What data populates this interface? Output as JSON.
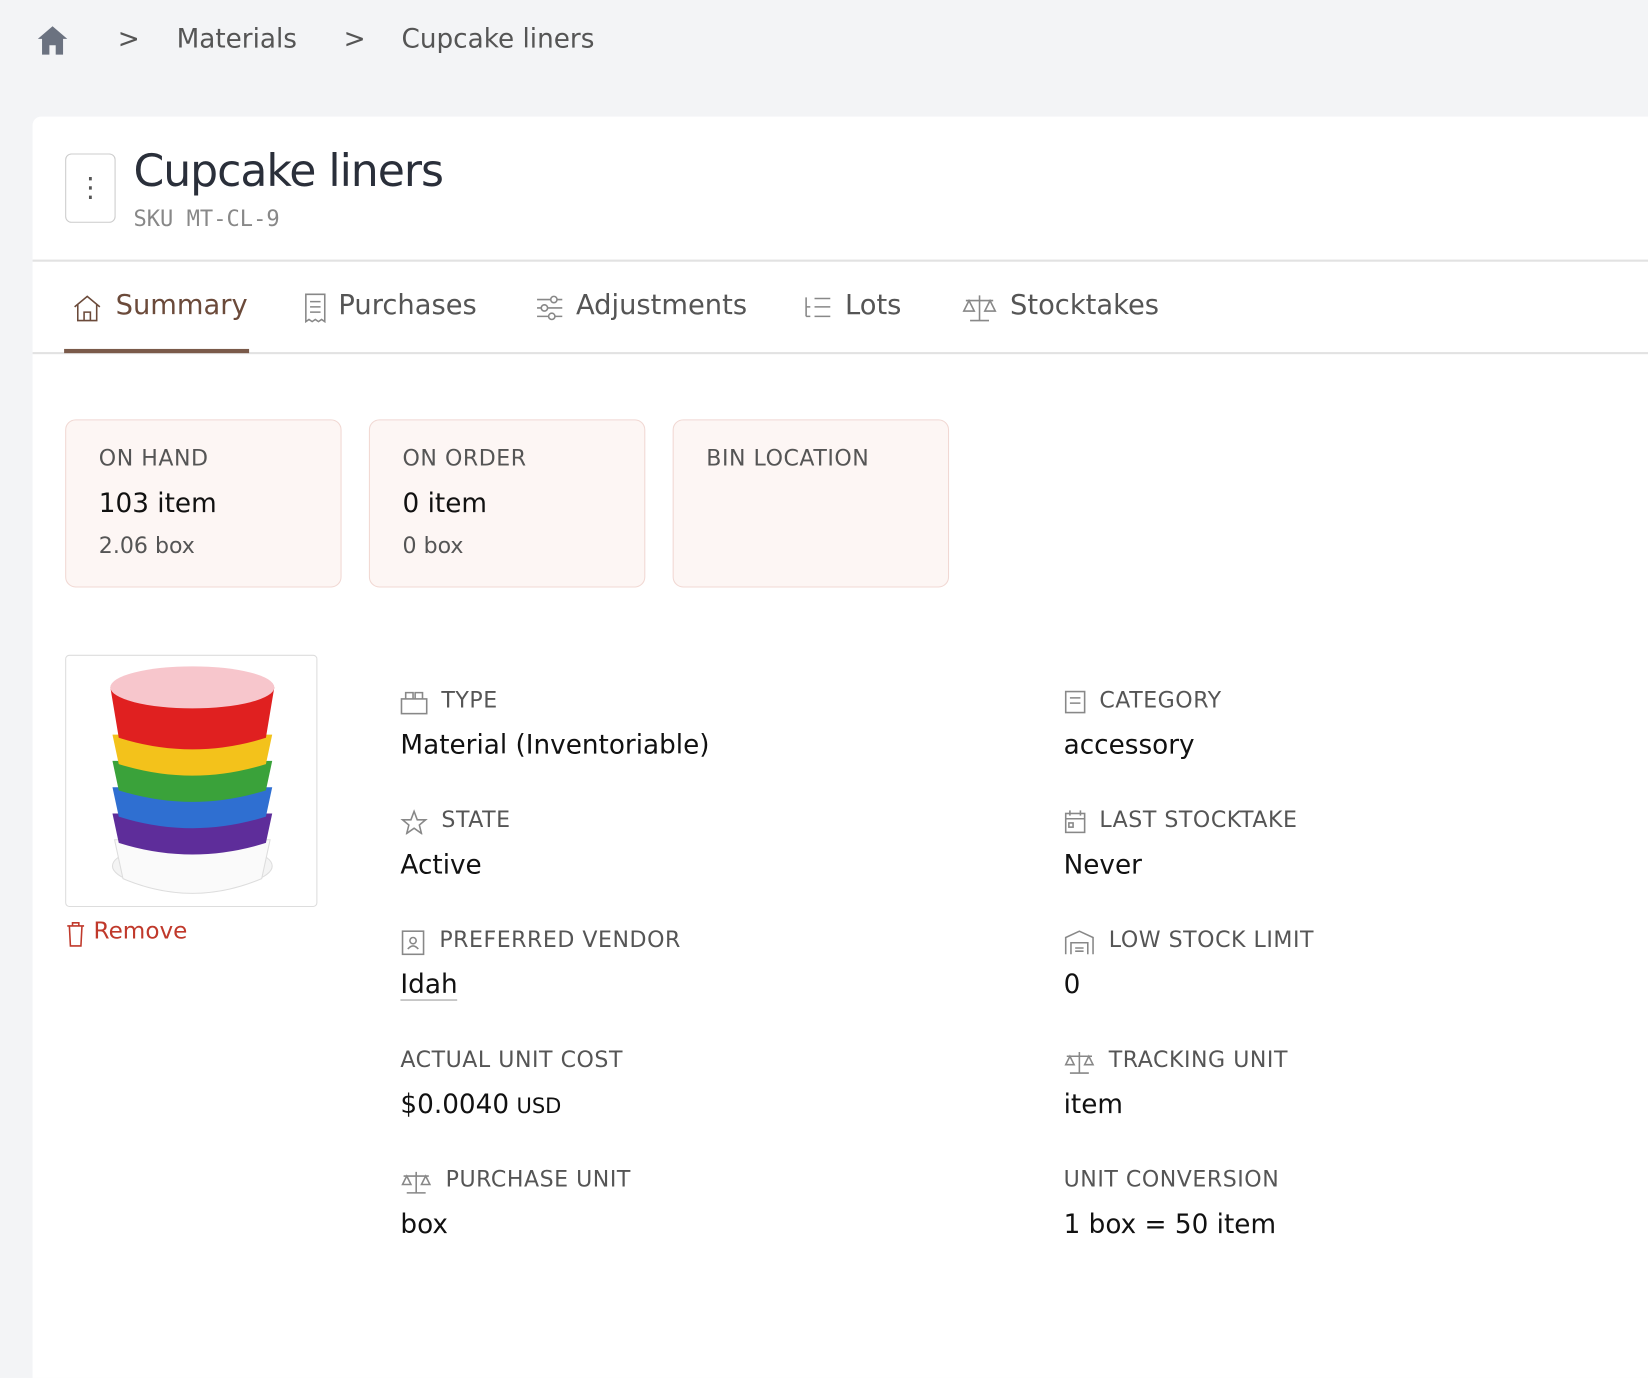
{
  "breadcrumb": [
    "Materials",
    "Cupcake liners"
  ],
  "header": {
    "title": "Cupcake liners",
    "sku": "SKU MT-CL-9"
  },
  "tabs": [
    "Summary",
    "Purchases",
    "Adjustments",
    "Lots",
    "Stocktakes"
  ],
  "stats": [
    {
      "label": "ON HAND",
      "primary": "103 item",
      "secondary": "2.06 box"
    },
    {
      "label": "ON ORDER",
      "primary": "0 item",
      "secondary": "0 box"
    },
    {
      "label": "BIN LOCATION"
    }
  ],
  "image": {
    "remove": "Remove"
  },
  "fields": {
    "left": [
      {
        "label": "TYPE",
        "value": "Material (Inventoriable)"
      },
      {
        "label": "STATE",
        "value": "Active"
      },
      {
        "label": "PREFERRED VENDOR",
        "value": "Idah"
      },
      {
        "label": "ACTUAL UNIT COST",
        "value": "$0.0040",
        "unit": "USD"
      },
      {
        "label": "PURCHASE UNIT",
        "value": "box"
      }
    ],
    "right": [
      {
        "label": "CATEGORY",
        "value": "accessory"
      },
      {
        "label": "LAST STOCKTAKE",
        "value": "Never"
      },
      {
        "label": "LOW STOCK LIMIT",
        "value": "0"
      },
      {
        "label": "TRACKING UNIT",
        "value": "item"
      },
      {
        "label": "UNIT CONVERSION",
        "value": "1 box = 50 item"
      }
    ]
  }
}
